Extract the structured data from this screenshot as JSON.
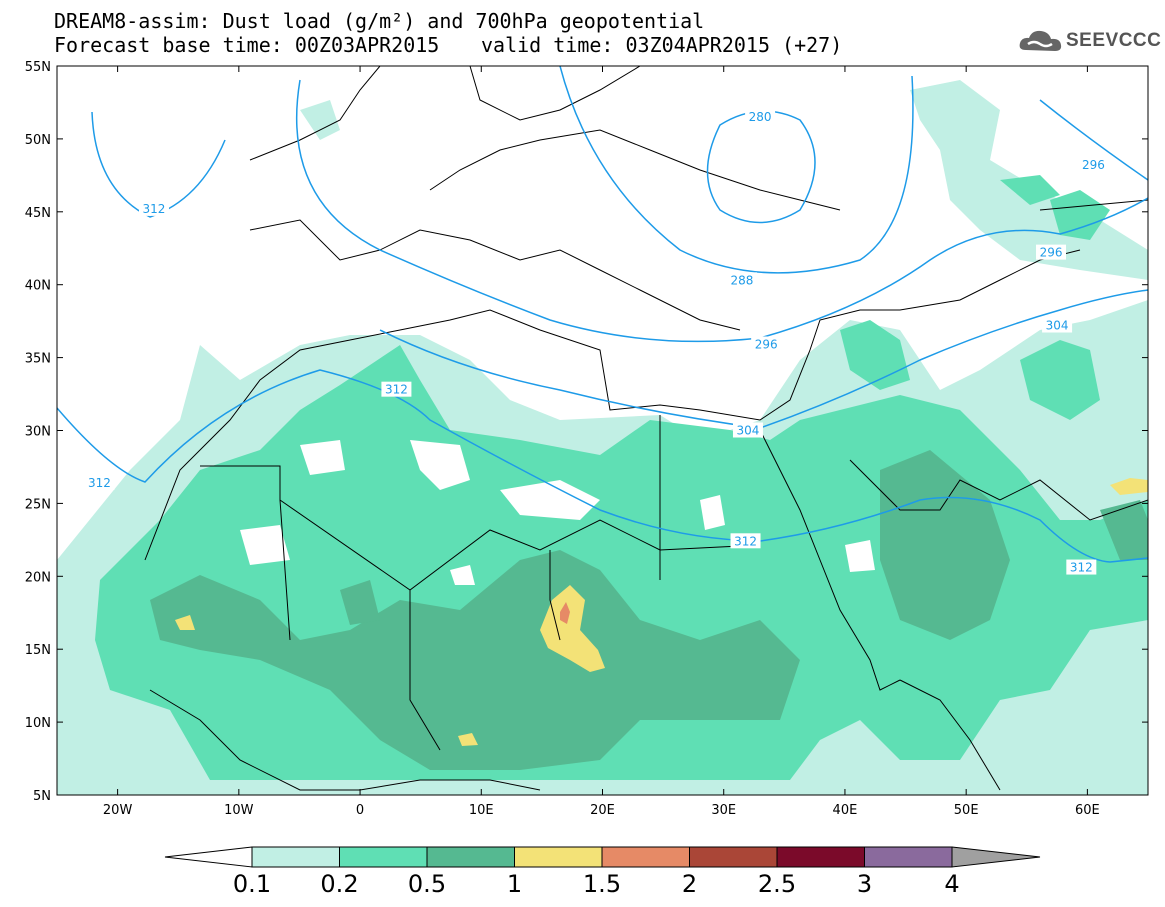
{
  "title": {
    "line1": "DREAM8-assim: Dust load (g/m²) and 700hPa geopotential",
    "line2": "Forecast base time: 00Z03APR2015",
    "line2b": "valid time: 03Z04APR2015 (+27)"
  },
  "logo": {
    "icon": "cloud-icon",
    "text": "SEEVCCC"
  },
  "map": {
    "lon_range": [
      -25,
      65
    ],
    "lat_range": [
      5,
      55
    ],
    "lat_labels": [
      "55N",
      "50N",
      "45N",
      "40N",
      "35N",
      "30N",
      "25N",
      "20N",
      "15N",
      "10N",
      "5N"
    ],
    "lat_values": [
      55,
      50,
      45,
      40,
      35,
      30,
      25,
      20,
      15,
      10,
      5
    ],
    "lon_labels": [
      "20W",
      "10W",
      "0",
      "10E",
      "20E",
      "30E",
      "40E",
      "50E",
      "60E"
    ],
    "lon_values": [
      -20,
      -10,
      0,
      10,
      20,
      30,
      40,
      50,
      60
    ],
    "contour_labels": [
      {
        "text": "312",
        "lon": -17,
        "lat": 45.2
      },
      {
        "text": "280",
        "lon": 33,
        "lat": 51.5
      },
      {
        "text": "296",
        "lon": 60.5,
        "lat": 48.2
      },
      {
        "text": "296",
        "lon": 57,
        "lat": 42.2
      },
      {
        "text": "288",
        "lon": 31.5,
        "lat": 40.3
      },
      {
        "text": "296",
        "lon": 33.5,
        "lat": 35.9
      },
      {
        "text": "304",
        "lon": 57.5,
        "lat": 37.2
      },
      {
        "text": "312",
        "lon": 3,
        "lat": 32.8
      },
      {
        "text": "304",
        "lon": 32,
        "lat": 30.0
      },
      {
        "text": "312",
        "lon": -21.5,
        "lat": 26.4
      },
      {
        "text": "312",
        "lon": 31.8,
        "lat": 22.4
      },
      {
        "text": "312",
        "lon": 59.5,
        "lat": 20.6
      }
    ],
    "colors": {
      "contour": "#1e9be8",
      "land_border": "#000000",
      "dust_0_1": "#c1efe4",
      "dust_0_2": "#5fdfb4",
      "dust_0_5": "#55b991",
      "dust_1": "#f3e277",
      "dust_1_5": "#e68a66",
      "dust_2": "#aa4637"
    }
  },
  "colorbar": {
    "labels": [
      "0.1",
      "0.2",
      "0.5",
      "1",
      "1.5",
      "2",
      "2.5",
      "3",
      "4"
    ],
    "colors": [
      "#c1efe4",
      "#5fdfb4",
      "#55b991",
      "#f3e277",
      "#e68a66",
      "#aa4637",
      "#7b0a2a",
      "#8a6a9d"
    ],
    "under_color": "#ffffff",
    "over_color": "#a0a0a0"
  }
}
